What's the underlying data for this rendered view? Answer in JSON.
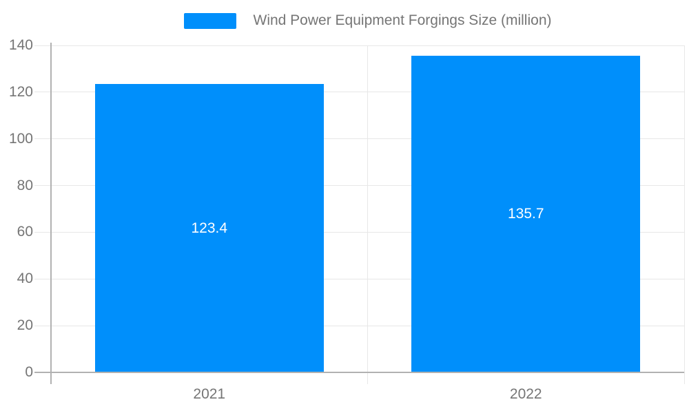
{
  "legend": {
    "label": "Wind Power Equipment Forgings Size (million)"
  },
  "chart_data": {
    "type": "bar",
    "categories": [
      "2021",
      "2022"
    ],
    "series": [
      {
        "name": "Wind Power Equipment Forgings Size (million)",
        "values": [
          123.4,
          135.7
        ]
      }
    ],
    "data_labels": [
      "123.4",
      "135.7"
    ],
    "title": "",
    "xlabel": "",
    "ylabel": "",
    "ylim": [
      0,
      140
    ],
    "yticks": [
      0,
      20,
      40,
      60,
      80,
      100,
      120,
      140
    ],
    "grid": true,
    "legend_position": "top-center",
    "data_label_position": "middle-of-bar"
  },
  "colors": {
    "bar": "#008FFB",
    "grid_line": "#e7e7e7",
    "axis_line": "#b1b1b1",
    "tick_label": "#757575",
    "legend_label": "#757575",
    "data_label": "#ffffff",
    "background": "#ffffff"
  }
}
